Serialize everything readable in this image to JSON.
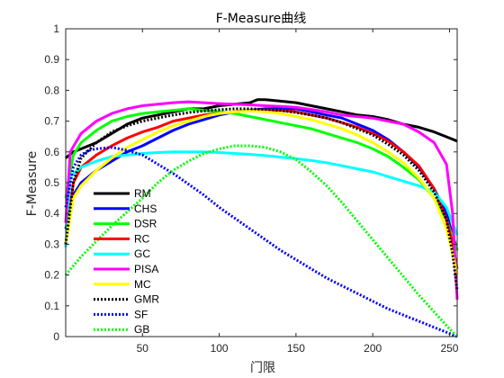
{
  "chart_data": {
    "type": "line",
    "title": "F-Measure曲线",
    "xlabel": "门限",
    "ylabel": "F-Measure",
    "xlim": [
      0,
      255
    ],
    "ylim": [
      0,
      1
    ],
    "xticks": [
      50,
      100,
      150,
      200,
      250
    ],
    "yticks": [
      0,
      0.1,
      0.2,
      0.3,
      0.4,
      0.5,
      0.6,
      0.7,
      0.8,
      0.9,
      1
    ],
    "xtick_labels": [
      "50",
      "100",
      "150",
      "200",
      "250"
    ],
    "ytick_labels": [
      "0",
      "0.1",
      "0.2",
      "0.3",
      "0.4",
      "0.5",
      "0.6",
      "0.7",
      "0.8",
      "0.9",
      "1"
    ],
    "grid": false,
    "legend_position": "bottom-left",
    "series": [
      {
        "name": "RM",
        "color": "#000000",
        "style": "solid",
        "points": [
          [
            0,
            0.58
          ],
          [
            5,
            0.6
          ],
          [
            10,
            0.61
          ],
          [
            20,
            0.63
          ],
          [
            30,
            0.66
          ],
          [
            40,
            0.69
          ],
          [
            50,
            0.71
          ],
          [
            60,
            0.72
          ],
          [
            70,
            0.73
          ],
          [
            80,
            0.74
          ],
          [
            90,
            0.74
          ],
          [
            100,
            0.75
          ],
          [
            110,
            0.755
          ],
          [
            120,
            0.76
          ],
          [
            125,
            0.77
          ],
          [
            130,
            0.77
          ],
          [
            140,
            0.765
          ],
          [
            150,
            0.76
          ],
          [
            160,
            0.75
          ],
          [
            170,
            0.74
          ],
          [
            180,
            0.73
          ],
          [
            190,
            0.72
          ],
          [
            200,
            0.715
          ],
          [
            210,
            0.705
          ],
          [
            220,
            0.69
          ],
          [
            230,
            0.68
          ],
          [
            240,
            0.665
          ],
          [
            250,
            0.645
          ],
          [
            255,
            0.635
          ]
        ]
      },
      {
        "name": "CHS",
        "color": "#0000ff",
        "style": "solid",
        "points": [
          [
            0,
            0.35
          ],
          [
            5,
            0.46
          ],
          [
            10,
            0.5
          ],
          [
            20,
            0.54
          ],
          [
            30,
            0.57
          ],
          [
            40,
            0.6
          ],
          [
            50,
            0.62
          ],
          [
            60,
            0.645
          ],
          [
            70,
            0.67
          ],
          [
            80,
            0.69
          ],
          [
            90,
            0.705
          ],
          [
            100,
            0.72
          ],
          [
            110,
            0.73
          ],
          [
            120,
            0.735
          ],
          [
            130,
            0.74
          ],
          [
            140,
            0.74
          ],
          [
            150,
            0.74
          ],
          [
            160,
            0.73
          ],
          [
            170,
            0.72
          ],
          [
            180,
            0.71
          ],
          [
            190,
            0.69
          ],
          [
            200,
            0.67
          ],
          [
            210,
            0.64
          ],
          [
            220,
            0.6
          ],
          [
            230,
            0.55
          ],
          [
            240,
            0.48
          ],
          [
            248,
            0.4
          ],
          [
            252,
            0.33
          ],
          [
            255,
            0.28
          ]
        ]
      },
      {
        "name": "DSR",
        "color": "#00ff00",
        "style": "solid",
        "points": [
          [
            0,
            0.45
          ],
          [
            5,
            0.59
          ],
          [
            10,
            0.63
          ],
          [
            20,
            0.67
          ],
          [
            30,
            0.7
          ],
          [
            40,
            0.715
          ],
          [
            50,
            0.725
          ],
          [
            60,
            0.73
          ],
          [
            70,
            0.735
          ],
          [
            80,
            0.74
          ],
          [
            90,
            0.735
          ],
          [
            100,
            0.73
          ],
          [
            110,
            0.725
          ],
          [
            120,
            0.715
          ],
          [
            130,
            0.705
          ],
          [
            140,
            0.695
          ],
          [
            150,
            0.685
          ],
          [
            160,
            0.675
          ],
          [
            170,
            0.66
          ],
          [
            180,
            0.645
          ],
          [
            190,
            0.63
          ],
          [
            200,
            0.61
          ],
          [
            210,
            0.585
          ],
          [
            220,
            0.55
          ],
          [
            230,
            0.51
          ],
          [
            240,
            0.45
          ],
          [
            248,
            0.38
          ],
          [
            252,
            0.32
          ],
          [
            255,
            0.28
          ]
        ]
      },
      {
        "name": "RC",
        "color": "#ff0000",
        "style": "solid",
        "points": [
          [
            0,
            0.3
          ],
          [
            5,
            0.5
          ],
          [
            10,
            0.55
          ],
          [
            20,
            0.59
          ],
          [
            30,
            0.62
          ],
          [
            40,
            0.645
          ],
          [
            50,
            0.665
          ],
          [
            60,
            0.68
          ],
          [
            70,
            0.7
          ],
          [
            80,
            0.71
          ],
          [
            90,
            0.72
          ],
          [
            100,
            0.725
          ],
          [
            110,
            0.73
          ],
          [
            120,
            0.735
          ],
          [
            130,
            0.735
          ],
          [
            140,
            0.735
          ],
          [
            150,
            0.73
          ],
          [
            160,
            0.72
          ],
          [
            170,
            0.71
          ],
          [
            180,
            0.695
          ],
          [
            190,
            0.68
          ],
          [
            200,
            0.66
          ],
          [
            210,
            0.635
          ],
          [
            220,
            0.6
          ],
          [
            230,
            0.555
          ],
          [
            240,
            0.48
          ],
          [
            248,
            0.38
          ],
          [
            252,
            0.3
          ],
          [
            255,
            0.22
          ]
        ]
      },
      {
        "name": "GC",
        "color": "#00ffff",
        "style": "solid",
        "points": [
          [
            0,
            0.29
          ],
          [
            3,
            0.52
          ],
          [
            10,
            0.55
          ],
          [
            20,
            0.57
          ],
          [
            30,
            0.585
          ],
          [
            40,
            0.59
          ],
          [
            50,
            0.595
          ],
          [
            60,
            0.598
          ],
          [
            70,
            0.6
          ],
          [
            80,
            0.6
          ],
          [
            90,
            0.6
          ],
          [
            100,
            0.598
          ],
          [
            110,
            0.595
          ],
          [
            120,
            0.592
          ],
          [
            130,
            0.588
          ],
          [
            140,
            0.583
          ],
          [
            150,
            0.578
          ],
          [
            160,
            0.572
          ],
          [
            170,
            0.565
          ],
          [
            180,
            0.555
          ],
          [
            190,
            0.545
          ],
          [
            200,
            0.535
          ],
          [
            210,
            0.52
          ],
          [
            220,
            0.505
          ],
          [
            230,
            0.49
          ],
          [
            240,
            0.47
          ],
          [
            248,
            0.42
          ],
          [
            252,
            0.37
          ],
          [
            255,
            0.33
          ]
        ]
      },
      {
        "name": "PISA",
        "color": "#ff00ff",
        "style": "solid",
        "points": [
          [
            0,
            0.37
          ],
          [
            3,
            0.6
          ],
          [
            10,
            0.66
          ],
          [
            20,
            0.7
          ],
          [
            30,
            0.725
          ],
          [
            40,
            0.74
          ],
          [
            50,
            0.75
          ],
          [
            60,
            0.755
          ],
          [
            70,
            0.76
          ],
          [
            80,
            0.763
          ],
          [
            90,
            0.76
          ],
          [
            100,
            0.757
          ],
          [
            110,
            0.755
          ],
          [
            120,
            0.753
          ],
          [
            130,
            0.75
          ],
          [
            140,
            0.748
          ],
          [
            150,
            0.745
          ],
          [
            160,
            0.738
          ],
          [
            170,
            0.73
          ],
          [
            180,
            0.72
          ],
          [
            190,
            0.715
          ],
          [
            200,
            0.71
          ],
          [
            210,
            0.7
          ],
          [
            220,
            0.69
          ],
          [
            230,
            0.665
          ],
          [
            240,
            0.63
          ],
          [
            248,
            0.56
          ],
          [
            252,
            0.4
          ],
          [
            255,
            0.12
          ]
        ]
      },
      {
        "name": "MC",
        "color": "#ffff00",
        "style": "solid",
        "points": [
          [
            0,
            0.3
          ],
          [
            5,
            0.45
          ],
          [
            10,
            0.49
          ],
          [
            20,
            0.54
          ],
          [
            30,
            0.58
          ],
          [
            40,
            0.615
          ],
          [
            50,
            0.64
          ],
          [
            60,
            0.665
          ],
          [
            70,
            0.685
          ],
          [
            80,
            0.7
          ],
          [
            90,
            0.715
          ],
          [
            100,
            0.725
          ],
          [
            110,
            0.73
          ],
          [
            120,
            0.733
          ],
          [
            130,
            0.73
          ],
          [
            140,
            0.725
          ],
          [
            150,
            0.715
          ],
          [
            160,
            0.705
          ],
          [
            170,
            0.69
          ],
          [
            180,
            0.675
          ],
          [
            190,
            0.655
          ],
          [
            200,
            0.63
          ],
          [
            210,
            0.6
          ],
          [
            220,
            0.565
          ],
          [
            230,
            0.515
          ],
          [
            240,
            0.45
          ],
          [
            248,
            0.35
          ],
          [
            252,
            0.27
          ],
          [
            255,
            0.2
          ]
        ]
      },
      {
        "name": "GMR",
        "color": "#000000",
        "style": "dotted",
        "points": [
          [
            0,
            0.3
          ],
          [
            5,
            0.5
          ],
          [
            10,
            0.58
          ],
          [
            20,
            0.63
          ],
          [
            30,
            0.665
          ],
          [
            40,
            0.685
          ],
          [
            50,
            0.7
          ],
          [
            60,
            0.71
          ],
          [
            70,
            0.72
          ],
          [
            80,
            0.728
          ],
          [
            90,
            0.733
          ],
          [
            100,
            0.737
          ],
          [
            110,
            0.74
          ],
          [
            120,
            0.74
          ],
          [
            130,
            0.738
          ],
          [
            140,
            0.735
          ],
          [
            150,
            0.728
          ],
          [
            160,
            0.72
          ],
          [
            170,
            0.71
          ],
          [
            180,
            0.695
          ],
          [
            190,
            0.675
          ],
          [
            200,
            0.655
          ],
          [
            210,
            0.625
          ],
          [
            220,
            0.59
          ],
          [
            230,
            0.54
          ],
          [
            240,
            0.47
          ],
          [
            248,
            0.38
          ],
          [
            252,
            0.27
          ],
          [
            255,
            0.15
          ]
        ]
      },
      {
        "name": "SF",
        "color": "#0000ff",
        "style": "dotted",
        "points": [
          [
            0,
            0.42
          ],
          [
            5,
            0.55
          ],
          [
            10,
            0.59
          ],
          [
            15,
            0.605
          ],
          [
            20,
            0.61
          ],
          [
            30,
            0.615
          ],
          [
            40,
            0.605
          ],
          [
            50,
            0.59
          ],
          [
            60,
            0.56
          ],
          [
            70,
            0.53
          ],
          [
            80,
            0.495
          ],
          [
            90,
            0.46
          ],
          [
            100,
            0.42
          ],
          [
            110,
            0.385
          ],
          [
            120,
            0.35
          ],
          [
            130,
            0.315
          ],
          [
            140,
            0.28
          ],
          [
            150,
            0.25
          ],
          [
            160,
            0.22
          ],
          [
            170,
            0.19
          ],
          [
            180,
            0.165
          ],
          [
            190,
            0.14
          ],
          [
            200,
            0.115
          ],
          [
            210,
            0.09
          ],
          [
            220,
            0.07
          ],
          [
            230,
            0.05
          ],
          [
            240,
            0.03
          ],
          [
            250,
            0.01
          ],
          [
            255,
            0
          ]
        ]
      },
      {
        "name": "GB",
        "color": "#00ff00",
        "style": "dotted",
        "points": [
          [
            0,
            0.2
          ],
          [
            10,
            0.26
          ],
          [
            20,
            0.31
          ],
          [
            30,
            0.36
          ],
          [
            40,
            0.405
          ],
          [
            50,
            0.45
          ],
          [
            60,
            0.5
          ],
          [
            70,
            0.54
          ],
          [
            80,
            0.57
          ],
          [
            90,
            0.595
          ],
          [
            100,
            0.61
          ],
          [
            110,
            0.62
          ],
          [
            120,
            0.62
          ],
          [
            130,
            0.615
          ],
          [
            140,
            0.6
          ],
          [
            150,
            0.575
          ],
          [
            160,
            0.535
          ],
          [
            170,
            0.49
          ],
          [
            180,
            0.435
          ],
          [
            190,
            0.375
          ],
          [
            200,
            0.315
          ],
          [
            210,
            0.255
          ],
          [
            220,
            0.195
          ],
          [
            230,
            0.135
          ],
          [
            240,
            0.08
          ],
          [
            250,
            0.025
          ],
          [
            255,
            0
          ]
        ]
      }
    ]
  }
}
